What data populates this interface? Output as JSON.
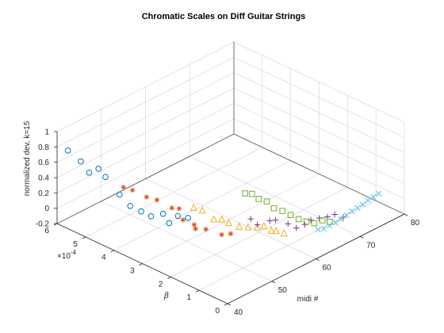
{
  "chart_data": {
    "type": "scatter3d",
    "title": "Chromatic Scales on Diff Guitar Strings",
    "xlabel": "midi #",
    "ylabel": "β",
    "ylabel_exponent": "×10",
    "ylabel_exponent_power": "-4",
    "zlabel": "normalized dev, k=15",
    "xlim": [
      40,
      80
    ],
    "ylim": [
      0,
      6
    ],
    "zlim": [
      -0.2,
      1
    ],
    "xticks": [
      "40",
      "50",
      "60",
      "70",
      "80"
    ],
    "yticks": [
      "0",
      "1",
      "2",
      "3",
      "4",
      "5",
      "6"
    ],
    "zticks": [
      "-0.2",
      "0",
      "0.2",
      "0.4",
      "0.6",
      "0.8",
      "1"
    ],
    "grid": true,
    "series": [
      {
        "marker": "circle",
        "color": "#0072BD",
        "points": [
          [
            40,
            5.62,
            0.82
          ],
          [
            41,
            5.32,
            0.7
          ],
          [
            42,
            5.18,
            0.55
          ],
          [
            43,
            5.01,
            0.6
          ],
          [
            44,
            4.92,
            0.48
          ],
          [
            45,
            4.58,
            0.28
          ],
          [
            46,
            4.36,
            0.14
          ],
          [
            47,
            4.13,
            0.08
          ],
          [
            48,
            3.94,
            0.02
          ],
          [
            49,
            3.67,
            0.07
          ],
          [
            50,
            3.61,
            -0.07
          ],
          [
            51,
            3.46,
            0.02
          ],
          [
            52,
            3.26,
            0.0
          ]
        ]
      },
      {
        "marker": "asterisk",
        "color": "#D95319",
        "points": [
          [
            45,
            4.44,
            0.4
          ],
          [
            46,
            4.28,
            0.36
          ],
          [
            47,
            3.94,
            0.3
          ],
          [
            48,
            3.73,
            0.27
          ],
          [
            49,
            3.36,
            0.2
          ],
          [
            50,
            3.26,
            0.18
          ],
          [
            51,
            3.28,
            -0.0
          ],
          [
            52,
            3.04,
            -0.05
          ],
          [
            53,
            3.15,
            -0.15
          ],
          [
            54,
            2.94,
            -0.15
          ],
          [
            55,
            2.54,
            -0.18
          ],
          [
            56,
            2.38,
            -0.17
          ]
        ]
      },
      {
        "marker": "triangle",
        "color": "#EDB120",
        "points": [
          [
            50,
            2.75,
            0.28
          ],
          [
            51,
            2.6,
            0.24
          ],
          [
            52,
            2.35,
            0.14
          ],
          [
            53,
            2.23,
            0.13
          ],
          [
            54,
            2.14,
            0.07
          ],
          [
            55,
            1.92,
            0.03
          ],
          [
            56,
            1.77,
            0.02
          ],
          [
            57,
            1.6,
            0.02
          ],
          [
            58,
            1.52,
            0.02
          ],
          [
            59,
            1.42,
            -0.05
          ],
          [
            60,
            1.4,
            -0.08
          ],
          [
            61,
            1.28,
            -0.12
          ]
        ]
      },
      {
        "marker": "plus",
        "color": "#7E2F8E",
        "points": [
          [
            57,
            1.83,
            0.09
          ],
          [
            58,
            1.75,
            0.0
          ],
          [
            59,
            1.47,
            0.07
          ],
          [
            60,
            1.42,
            0.06
          ],
          [
            61,
            1.14,
            0.03
          ],
          [
            62,
            1.0,
            -0.03
          ],
          [
            63,
            0.86,
            0.01
          ],
          [
            64,
            0.8,
            0.05
          ],
          [
            65,
            0.66,
            0.07
          ],
          [
            66,
            0.53,
            0.08
          ],
          [
            67,
            0.43,
            0.1
          ],
          [
            68,
            0.28,
            0.06
          ]
        ]
      },
      {
        "marker": "square",
        "color": "#77AC30",
        "points": [
          [
            55,
            1.72,
            0.5
          ],
          [
            56,
            1.63,
            0.48
          ],
          [
            57,
            1.55,
            0.4
          ],
          [
            58,
            1.42,
            0.36
          ],
          [
            59,
            1.32,
            0.26
          ],
          [
            60,
            1.18,
            0.22
          ],
          [
            61,
            1.05,
            0.16
          ],
          [
            62,
            0.92,
            0.1
          ],
          [
            63,
            0.8,
            0.06
          ],
          [
            64,
            0.68,
            0.03
          ],
          [
            65,
            0.55,
            0.06
          ],
          [
            66,
            0.45,
            0.03
          ]
        ]
      },
      {
        "marker": "x",
        "color": "#4DBEEE",
        "points": [
          [
            64,
            0.55,
            -0.03
          ],
          [
            65,
            0.5,
            -0.04
          ],
          [
            66,
            0.45,
            -0.02
          ],
          [
            67,
            0.4,
            0.0
          ],
          [
            68,
            0.37,
            0.02
          ],
          [
            69,
            0.33,
            0.05
          ],
          [
            70,
            0.29,
            0.08
          ],
          [
            71,
            0.25,
            0.1
          ],
          [
            72,
            0.22,
            0.12
          ],
          [
            73,
            0.19,
            0.15
          ],
          [
            74,
            0.16,
            0.17
          ],
          [
            75,
            0.13,
            0.19
          ]
        ]
      }
    ]
  }
}
